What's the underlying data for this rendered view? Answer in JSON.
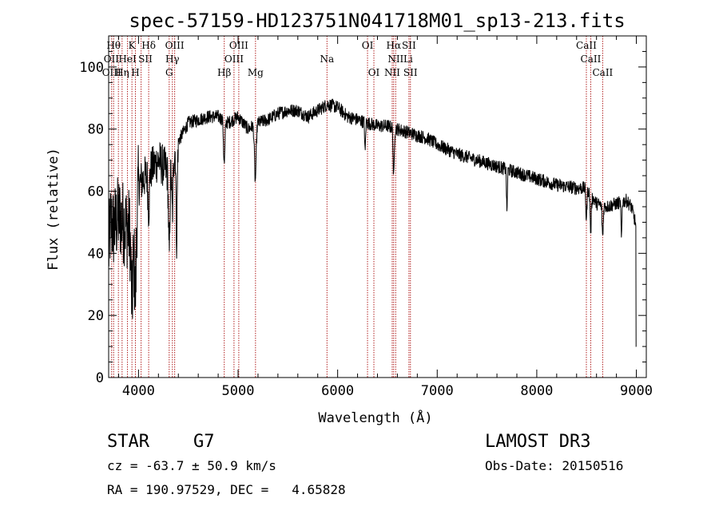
{
  "chart_data": {
    "type": "line",
    "title": "spec-57159-HD123751N041718M01_sp13-213.fits",
    "xlabel": "Wavelength (Å)",
    "ylabel": "Flux (relative)",
    "xlim": [
      3700,
      9100
    ],
    "ylim": [
      0,
      110
    ],
    "xticks": [
      4000,
      5000,
      6000,
      7000,
      8000,
      9000
    ],
    "xtick_labels": [
      "4000",
      "5000",
      "6000",
      "7000",
      "8000",
      "9000"
    ],
    "yticks": [
      0,
      20,
      40,
      60,
      80,
      100
    ],
    "ytick_labels": [
      "0",
      "20",
      "40",
      "60",
      "80",
      "100"
    ],
    "spectrum_knots": [
      [
        3700,
        40
      ],
      [
        3720,
        50
      ],
      [
        3750,
        48
      ],
      [
        3800,
        52
      ],
      [
        3850,
        50
      ],
      [
        3900,
        48
      ],
      [
        3950,
        42
      ],
      [
        4000,
        62
      ],
      [
        4050,
        64
      ],
      [
        4100,
        66
      ],
      [
        4150,
        68
      ],
      [
        4200,
        70
      ],
      [
        4250,
        68
      ],
      [
        4300,
        66
      ],
      [
        4350,
        72
      ],
      [
        4400,
        76
      ],
      [
        4500,
        82
      ],
      [
        4600,
        83
      ],
      [
        4700,
        84
      ],
      [
        4800,
        84
      ],
      [
        4900,
        82
      ],
      [
        5000,
        84
      ],
      [
        5100,
        80
      ],
      [
        5200,
        82
      ],
      [
        5300,
        83
      ],
      [
        5400,
        85
      ],
      [
        5500,
        86
      ],
      [
        5600,
        86
      ],
      [
        5700,
        84
      ],
      [
        5800,
        86
      ],
      [
        5900,
        88
      ],
      [
        6000,
        87
      ],
      [
        6100,
        84
      ],
      [
        6200,
        83
      ],
      [
        6300,
        82
      ],
      [
        6400,
        81
      ],
      [
        6500,
        81
      ],
      [
        6600,
        80
      ],
      [
        6700,
        79
      ],
      [
        6800,
        78
      ],
      [
        6900,
        77
      ],
      [
        7000,
        75
      ],
      [
        7200,
        72
      ],
      [
        7400,
        70
      ],
      [
        7600,
        68
      ],
      [
        7800,
        66
      ],
      [
        8000,
        64
      ],
      [
        8200,
        62
      ],
      [
        8400,
        61
      ],
      [
        8500,
        61
      ],
      [
        8600,
        56
      ],
      [
        8700,
        55
      ],
      [
        8800,
        56
      ],
      [
        8900,
        57
      ],
      [
        8950,
        55
      ],
      [
        8990,
        50
      ],
      [
        9000,
        46
      ]
    ],
    "absorption_features": [
      {
        "x": 3934,
        "depth": 20,
        "width": 12
      },
      {
        "x": 3969,
        "depth": 22,
        "width": 12
      },
      {
        "x": 4102,
        "depth": 12,
        "width": 10
      },
      {
        "x": 4308,
        "depth": 28,
        "width": 10
      },
      {
        "x": 4340,
        "depth": 18,
        "width": 10
      },
      {
        "x": 4383,
        "depth": 30,
        "width": 8
      },
      {
        "x": 4861,
        "depth": 14,
        "width": 10
      },
      {
        "x": 5173,
        "depth": 18,
        "width": 12
      },
      {
        "x": 6276,
        "depth": 10,
        "width": 6
      },
      {
        "x": 6563,
        "depth": 16,
        "width": 8
      },
      {
        "x": 7700,
        "depth": 14,
        "width": 6
      },
      {
        "x": 8498,
        "depth": 10,
        "width": 8
      },
      {
        "x": 8542,
        "depth": 12,
        "width": 8
      },
      {
        "x": 8662,
        "depth": 10,
        "width": 8
      },
      {
        "x": 8850,
        "depth": 12,
        "width": 6
      }
    ],
    "marker_lines": [
      3730,
      3750,
      3798,
      3835,
      3889,
      3934,
      3969,
      4026,
      4102,
      4308,
      4340,
      4363,
      4861,
      4959,
      5007,
      5175,
      5893,
      6300,
      6364,
      6548,
      6563,
      6583,
      6716,
      6731,
      8498,
      8542,
      8662
    ],
    "line_labels": [
      {
        "text": "Hθ",
        "x": 3750,
        "row": 1
      },
      {
        "text": "K",
        "x": 3934,
        "row": 1
      },
      {
        "text": "Hδ",
        "x": 4102,
        "row": 1
      },
      {
        "text": "OIII",
        "x": 4363,
        "row": 1
      },
      {
        "text": "OIII",
        "x": 5007,
        "row": 1
      },
      {
        "text": "OI",
        "x": 6300,
        "row": 1
      },
      {
        "text": "Hα",
        "x": 6563,
        "row": 1
      },
      {
        "text": "SII",
        "x": 6716,
        "row": 1
      },
      {
        "text": "CaII",
        "x": 8498,
        "row": 1
      },
      {
        "text": "OII",
        "x": 3727,
        "row": 2
      },
      {
        "text": "HeI",
        "x": 3889,
        "row": 2
      },
      {
        "text": "SII",
        "x": 4069,
        "row": 2
      },
      {
        "text": "Hγ",
        "x": 4340,
        "row": 2
      },
      {
        "text": "OIII",
        "x": 4959,
        "row": 2
      },
      {
        "text": "Na",
        "x": 5893,
        "row": 2
      },
      {
        "text": "NII",
        "x": 6583,
        "row": 2
      },
      {
        "text": "Li",
        "x": 6708,
        "row": 2
      },
      {
        "text": "CaII",
        "x": 8542,
        "row": 2
      },
      {
        "text": "OIII",
        "x": 3730,
        "row": 3
      },
      {
        "text": "Hη",
        "x": 3835,
        "row": 3
      },
      {
        "text": "H",
        "x": 3969,
        "row": 3
      },
      {
        "text": "G",
        "x": 4308,
        "row": 3
      },
      {
        "text": "Hβ",
        "x": 4861,
        "row": 3
      },
      {
        "text": "Mg",
        "x": 5175,
        "row": 3
      },
      {
        "text": "OI",
        "x": 6364,
        "row": 3
      },
      {
        "text": "NII",
        "x": 6548,
        "row": 3
      },
      {
        "text": "SII",
        "x": 6731,
        "row": 3
      },
      {
        "text": "CaII",
        "x": 8662,
        "row": 3
      }
    ],
    "colors": {
      "spectrum": "#000000",
      "markers": "#b22222",
      "axes": "#000000"
    }
  },
  "info": {
    "object_class": "STAR",
    "subclass": "G7",
    "survey": "LAMOST DR3",
    "cz": "cz = -63.7 ± 50.9 km/s",
    "obs_date": "Obs-Date: 20150516",
    "coords": "RA = 190.97529, DEC =   4.65828"
  }
}
